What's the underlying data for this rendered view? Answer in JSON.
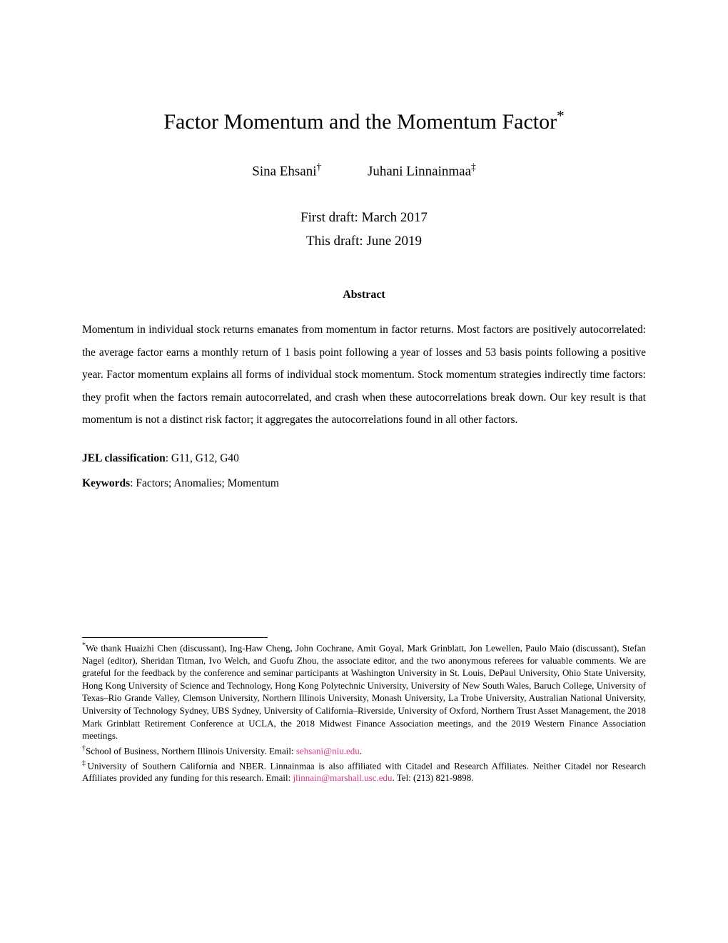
{
  "title": {
    "text": "Factor Momentum and the Momentum Factor",
    "note_mark": "*"
  },
  "authors": [
    {
      "name": "Sina Ehsani",
      "mark": "†"
    },
    {
      "name": "Juhani Linnainmaa",
      "mark": "‡"
    }
  ],
  "dates": {
    "first_draft": "First draft: March 2017",
    "this_draft": "This draft: June 2019"
  },
  "abstract": {
    "heading": "Abstract",
    "body": "Momentum in individual stock returns emanates from momentum in factor returns. Most factors are positively autocorrelated: the average factor earns a monthly return of 1 basis point following a year of losses and 53 basis points following a positive year. Factor momentum explains all forms of individual stock momentum. Stock momentum strategies indirectly time factors: they profit when the factors remain autocorrelated, and crash when these autocorrelations break down. Our key result is that momentum is not a distinct risk factor; it aggregates the autocorrelations found in all other factors."
  },
  "jel": {
    "label": "JEL classification",
    "value": ": G11, G12, G40"
  },
  "keywords": {
    "label": "Keywords",
    "value": ": Factors; Anomalies; Momentum"
  },
  "footnotes": {
    "star_mark": "*",
    "star_text_1": "We thank Huaizhi Chen (discussant), Ing-Haw Cheng, John Cochrane, Amit Goyal, Mark Grinblatt, Jon Lewellen, Paulo Maio (discussant), Stefan Nagel (editor), Sheridan Titman, Ivo Welch, and Guofu Zhou, the associate editor, and the two anonymous referees for valuable comments. We are grateful for the feedback by the conference and seminar participants at Washington University in St. Louis, DePaul University, Ohio State University, Hong Kong University of Science and Technology, Hong Kong Polytechnic University, University of New South Wales, Baruch College, University of Texas–Rio Grande Valley, Clemson University, Northern Illinois University, Monash University, La Trobe University, Australian National University, University of Technology Sydney, UBS Sydney, University of California–Riverside, University of Oxford, Northern Trust Asset Management, the 2018 Mark Grinblatt Retirement Conference at UCLA, the 2018 Midwest Finance Association meetings, and the 2019 Western Finance Association meetings.",
    "dagger_mark": "†",
    "dagger_text_prefix": "School of Business, Northern Illinois University. Email: ",
    "dagger_email": "sehsani@niu.edu",
    "dagger_text_suffix": ".",
    "ddagger_mark": "‡",
    "ddagger_text_prefix": "University of Southern California and NBER. Linnainmaa is also affiliated with Citadel and Research Affiliates. Neither Citadel nor Research Affiliates provided any funding for this research. Email: ",
    "ddagger_email": "jlinnain@marshall.usc.edu",
    "ddagger_text_suffix": ". Tel: (213) 821-9898."
  },
  "colors": {
    "link": "#d63384",
    "text": "#000000",
    "background": "#ffffff"
  }
}
